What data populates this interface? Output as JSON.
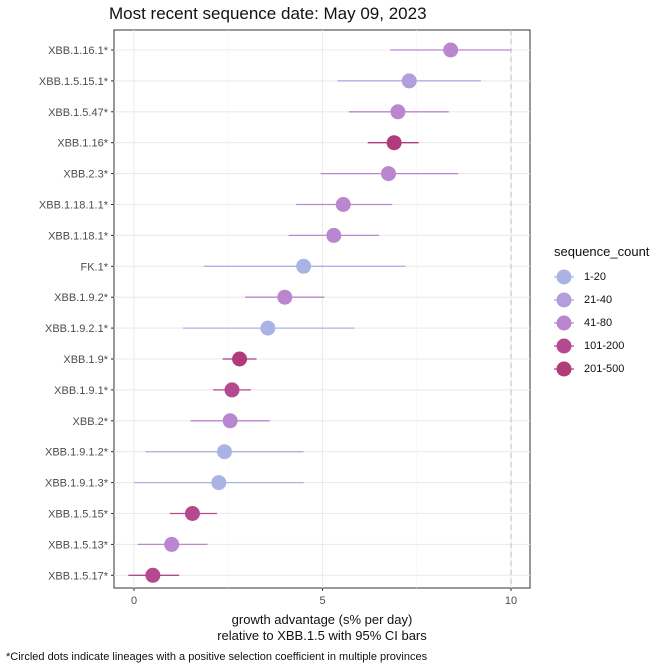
{
  "chart_data": {
    "type": "scatter",
    "title": "Most recent sequence date: May 09, 2023",
    "xlabel_line1": "growth advantage (s% per day)",
    "xlabel_line2": "relative to  XBB.1.5  with 95% CI bars",
    "footnote": "*Circled dots indicate lineages with a positive selection coefficient in multiple provinces",
    "xlim": [
      -0.75,
      10.5
    ],
    "x_ticks": [
      0,
      5,
      10
    ],
    "x_tick_labels": [
      "0",
      "5",
      "10"
    ],
    "reference_line_x": 10,
    "grid": true,
    "legend": {
      "title": "sequence_count",
      "placement": "right",
      "entries": [
        {
          "label": "1-20",
          "color": "#aab4e4"
        },
        {
          "label": "21-40",
          "color": "#b49ddc"
        },
        {
          "label": "41-80",
          "color": "#bb86d0"
        },
        {
          "label": "101-200",
          "color": "#b5498f"
        },
        {
          "label": "201-500",
          "color": "#b03a7a"
        }
      ]
    },
    "points": [
      {
        "lineage": "XBB.1.16.1*",
        "value": 8.4,
        "lo": 6.8,
        "hi": 10.0,
        "group": "41-80"
      },
      {
        "lineage": "XBB.1.5.15.1*",
        "value": 7.3,
        "lo": 5.4,
        "hi": 9.2,
        "group": "21-40"
      },
      {
        "lineage": "XBB.1.5.47*",
        "value": 7.0,
        "lo": 5.7,
        "hi": 8.35,
        "group": "41-80"
      },
      {
        "lineage": "XBB.1.16*",
        "value": 6.9,
        "lo": 6.2,
        "hi": 7.55,
        "group": "201-500"
      },
      {
        "lineage": "XBB.2.3*",
        "value": 6.75,
        "lo": 4.95,
        "hi": 8.6,
        "group": "41-80"
      },
      {
        "lineage": "XBB.1.18.1.1*",
        "value": 5.55,
        "lo": 4.3,
        "hi": 6.85,
        "group": "41-80"
      },
      {
        "lineage": "XBB.1.18.1*",
        "value": 5.3,
        "lo": 4.1,
        "hi": 6.5,
        "group": "41-80"
      },
      {
        "lineage": "FK.1*",
        "value": 4.5,
        "lo": 1.85,
        "hi": 7.2,
        "group": "1-20"
      },
      {
        "lineage": "XBB.1.9.2*",
        "value": 4.0,
        "lo": 2.95,
        "hi": 5.05,
        "group": "41-80"
      },
      {
        "lineage": "XBB.1.9.2.1*",
        "value": 3.55,
        "lo": 1.3,
        "hi": 5.85,
        "group": "1-20"
      },
      {
        "lineage": "XBB.1.9*",
        "value": 2.8,
        "lo": 2.35,
        "hi": 3.25,
        "group": "201-500"
      },
      {
        "lineage": "XBB.1.9.1*",
        "value": 2.6,
        "lo": 2.1,
        "hi": 3.1,
        "group": "101-200"
      },
      {
        "lineage": "XBB.2*",
        "value": 2.55,
        "lo": 1.5,
        "hi": 3.6,
        "group": "41-80"
      },
      {
        "lineage": "XBB.1.9.1.2*",
        "value": 2.4,
        "lo": 0.3,
        "hi": 4.5,
        "group": "1-20"
      },
      {
        "lineage": "XBB.1.9.1.3*",
        "value": 2.25,
        "lo": 0.0,
        "hi": 4.5,
        "group": "1-20"
      },
      {
        "lineage": "XBB.1.5.15*",
        "value": 1.55,
        "lo": 0.95,
        "hi": 2.2,
        "group": "101-200"
      },
      {
        "lineage": "XBB.1.5.13*",
        "value": 1.0,
        "lo": 0.1,
        "hi": 1.95,
        "group": "41-80"
      },
      {
        "lineage": "XBB.1.5.17*",
        "value": 0.5,
        "lo": -0.15,
        "hi": 1.2,
        "group": "101-200"
      }
    ]
  }
}
